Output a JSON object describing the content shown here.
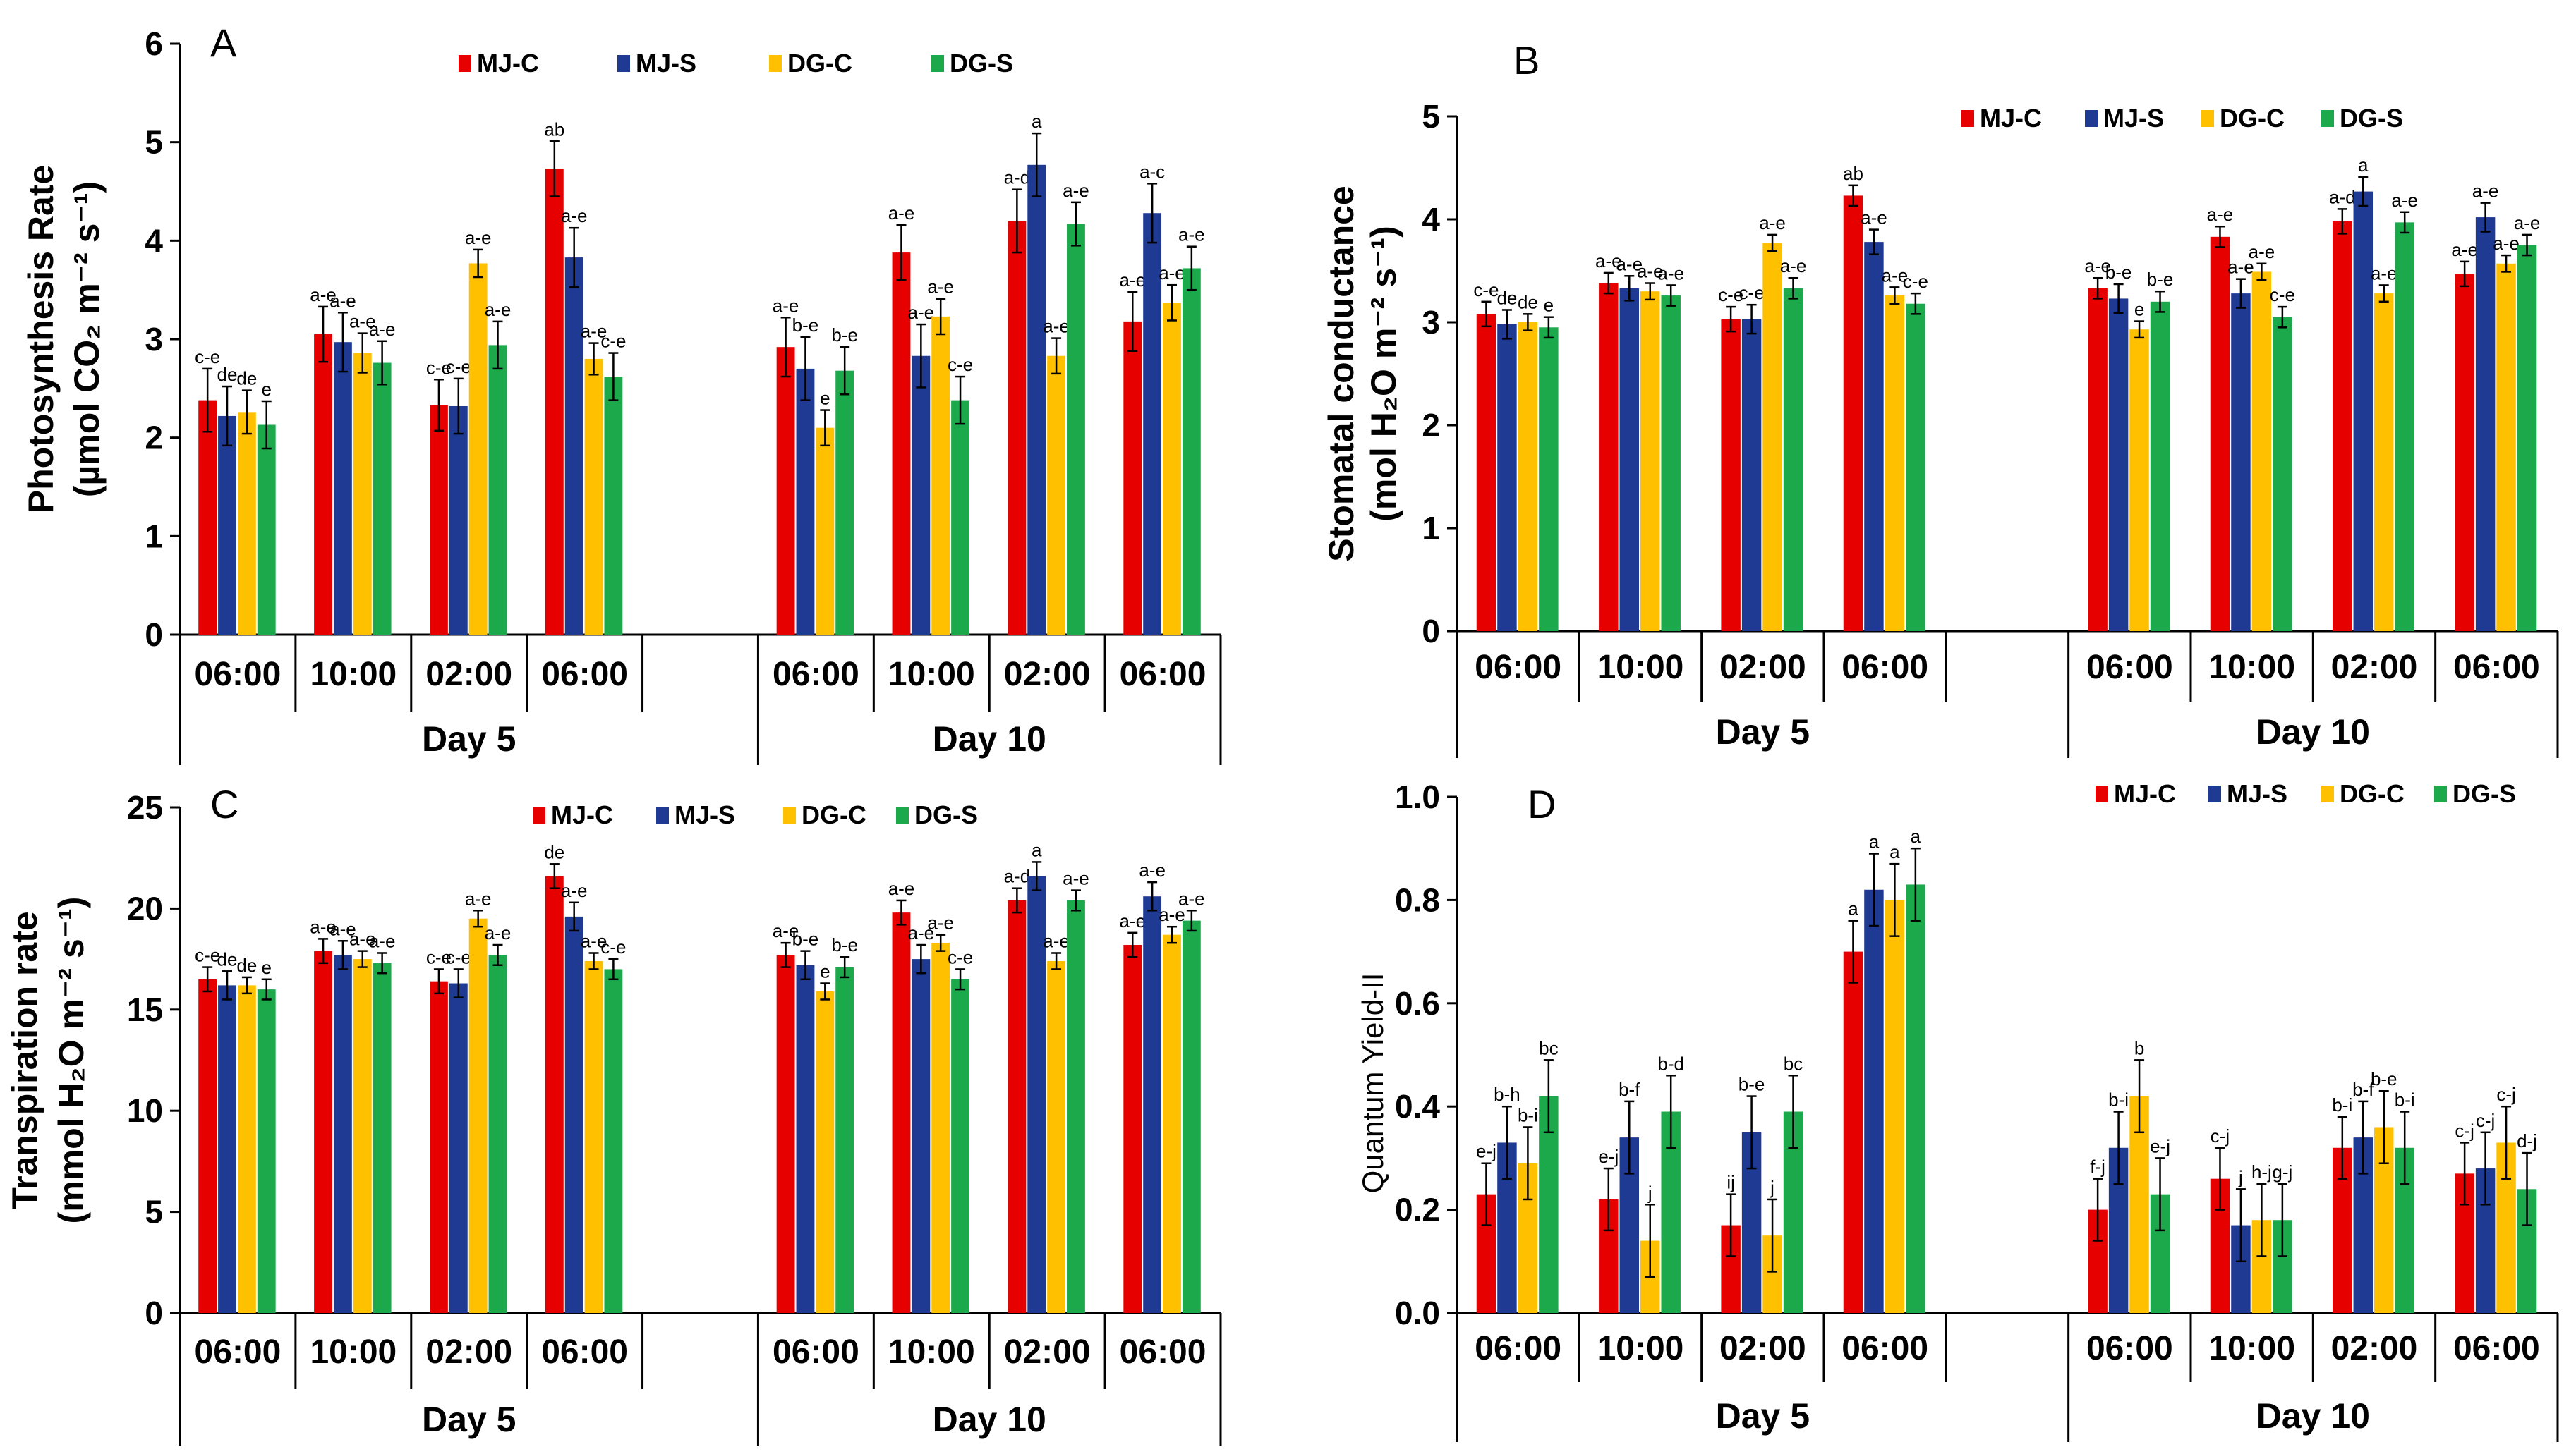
{
  "chart_data": [
    {
      "panel": "A",
      "type": "bar",
      "ylabel_line1": "Photosynthesis Rate",
      "ylabel_line2": "(µmol CO₂ m⁻² s⁻¹)",
      "ylim": [
        0,
        6
      ],
      "yticks": [
        "0",
        "1",
        "2",
        "3",
        "4",
        "5",
        "6"
      ],
      "categories": [
        "06:00",
        "10:00",
        "02:00",
        "06:00",
        "06:00",
        "10:00",
        "02:00",
        "06:00"
      ],
      "groups": [
        {
          "label": "Day 5",
          "count": 4
        },
        {
          "label": "Day 10",
          "count": 4
        }
      ],
      "series": [
        {
          "name": "MJ-C",
          "color": "#E60000",
          "values": [
            2.38,
            3.05,
            2.33,
            4.73,
            2.92,
            3.88,
            4.2,
            3.18
          ],
          "errors": [
            0.32,
            0.28,
            0.26,
            0.28,
            0.3,
            0.28,
            0.32,
            0.3
          ],
          "labels": [
            "c-e",
            "a-e",
            "c-e",
            "ab",
            "a-e",
            "a-e",
            "a-d",
            "a-e"
          ]
        },
        {
          "name": "MJ-S",
          "color": "#1F3A93",
          "values": [
            2.22,
            2.97,
            2.32,
            3.83,
            2.7,
            2.83,
            4.77,
            4.28
          ],
          "errors": [
            0.3,
            0.3,
            0.28,
            0.3,
            0.32,
            0.32,
            0.32,
            0.3
          ],
          "labels": [
            "de",
            "a-e",
            "c-e",
            "a-e",
            "b-e",
            "a-e",
            "a",
            "a-c"
          ]
        },
        {
          "name": "DG-C",
          "color": "#FFC000",
          "values": [
            2.26,
            2.86,
            3.77,
            2.8,
            2.1,
            3.23,
            2.83,
            3.37
          ],
          "errors": [
            0.22,
            0.2,
            0.14,
            0.16,
            0.18,
            0.18,
            0.18,
            0.18
          ],
          "labels": [
            "de",
            "a-e",
            "a-e",
            "a-e",
            "e",
            "a-e",
            "a-e",
            "a-e"
          ]
        },
        {
          "name": "DG-S",
          "color": "#1BA94C",
          "values": [
            2.13,
            2.76,
            2.94,
            2.62,
            2.68,
            2.38,
            4.17,
            3.72
          ],
          "errors": [
            0.24,
            0.22,
            0.24,
            0.24,
            0.24,
            0.24,
            0.22,
            0.22
          ],
          "labels": [
            "e",
            "a-e",
            "a-e",
            "c-e",
            "b-e",
            "c-e",
            "a-e",
            "a-e"
          ]
        }
      ]
    },
    {
      "panel": "B",
      "type": "bar",
      "ylabel_line1": "Stomatal conductance",
      "ylabel_line2": "(mol H₂O m⁻² s⁻¹)",
      "ylim": [
        0,
        5
      ],
      "yticks": [
        "0",
        "1",
        "2",
        "3",
        "4",
        "5"
      ],
      "categories": [
        "06:00",
        "10:00",
        "02:00",
        "06:00",
        "06:00",
        "10:00",
        "02:00",
        "06:00"
      ],
      "groups": [
        {
          "label": "Day 5",
          "count": 4
        },
        {
          "label": "Day 10",
          "count": 4
        }
      ],
      "series": [
        {
          "name": "MJ-C",
          "color": "#E60000",
          "values": [
            3.08,
            3.38,
            3.03,
            4.23,
            3.33,
            3.83,
            3.98,
            3.47
          ],
          "errors": [
            0.12,
            0.1,
            0.12,
            0.1,
            0.1,
            0.1,
            0.12,
            0.12
          ],
          "labels": [
            "c-e",
            "a-e",
            "c-e",
            "ab",
            "a-e",
            "a-e",
            "a-d",
            "a-e"
          ]
        },
        {
          "name": "MJ-S",
          "color": "#1F3A93",
          "values": [
            2.98,
            3.33,
            3.03,
            3.78,
            3.23,
            3.28,
            4.27,
            4.02
          ],
          "errors": [
            0.14,
            0.12,
            0.14,
            0.12,
            0.14,
            0.14,
            0.14,
            0.14
          ],
          "labels": [
            "de",
            "a-e",
            "c-e",
            "a-e",
            "b-e",
            "a-e",
            "a",
            "a-e"
          ]
        },
        {
          "name": "DG-C",
          "color": "#FFC000",
          "values": [
            3.0,
            3.3,
            3.77,
            3.26,
            2.93,
            3.49,
            3.28,
            3.57
          ],
          "errors": [
            0.08,
            0.08,
            0.08,
            0.08,
            0.08,
            0.08,
            0.08,
            0.08
          ],
          "labels": [
            "de",
            "a-e",
            "a-e",
            "a-e",
            "e",
            "a-e",
            "a-e",
            "a-e"
          ]
        },
        {
          "name": "DG-S",
          "color": "#1BA94C",
          "values": [
            2.95,
            3.26,
            3.33,
            3.18,
            3.2,
            3.05,
            3.97,
            3.75
          ],
          "errors": [
            0.1,
            0.1,
            0.1,
            0.1,
            0.1,
            0.1,
            0.1,
            0.1
          ],
          "labels": [
            "e",
            "a-e",
            "a-e",
            "c-e",
            "b-e",
            "c-e",
            "a-e",
            "a-e"
          ]
        }
      ]
    },
    {
      "panel": "C",
      "type": "bar",
      "ylabel_line1": "Transpiration rate",
      "ylabel_line2": "(mmol H₂O m⁻² s⁻¹)",
      "ylim": [
        0,
        25
      ],
      "yticks": [
        "0",
        "5",
        "10",
        "15",
        "20",
        "25"
      ],
      "categories": [
        "06:00",
        "10:00",
        "02:00",
        "06:00",
        "06:00",
        "10:00",
        "02:00",
        "06:00"
      ],
      "groups": [
        {
          "label": "Day 5",
          "count": 4
        },
        {
          "label": "Day 10",
          "count": 4
        }
      ],
      "series": [
        {
          "name": "MJ-C",
          "color": "#E60000",
          "values": [
            16.5,
            17.9,
            16.4,
            21.6,
            17.7,
            19.8,
            20.4,
            18.2
          ],
          "errors": [
            0.6,
            0.6,
            0.6,
            0.6,
            0.6,
            0.6,
            0.6,
            0.6
          ],
          "labels": [
            "c-e",
            "a-e",
            "c-e",
            "de",
            "a-e",
            "a-e",
            "a-d",
            "a-e"
          ]
        },
        {
          "name": "MJ-S",
          "color": "#1F3A93",
          "values": [
            16.2,
            17.7,
            16.3,
            19.6,
            17.2,
            17.5,
            21.6,
            20.6
          ],
          "errors": [
            0.7,
            0.7,
            0.7,
            0.7,
            0.7,
            0.7,
            0.7,
            0.7
          ],
          "labels": [
            "de",
            "a-e",
            "c-e",
            "a-e",
            "b-e",
            "a-e",
            "a",
            "a-e"
          ]
        },
        {
          "name": "DG-C",
          "color": "#FFC000",
          "values": [
            16.2,
            17.5,
            19.5,
            17.4,
            15.9,
            18.3,
            17.4,
            18.7
          ],
          "errors": [
            0.4,
            0.4,
            0.4,
            0.4,
            0.4,
            0.4,
            0.4,
            0.4
          ],
          "labels": [
            "de",
            "a-e",
            "a-e",
            "a-e",
            "e",
            "a-e",
            "a-e",
            "a-e"
          ]
        },
        {
          "name": "DG-S",
          "color": "#1BA94C",
          "values": [
            16.0,
            17.3,
            17.7,
            17.0,
            17.1,
            16.5,
            20.4,
            19.4
          ],
          "errors": [
            0.5,
            0.5,
            0.5,
            0.5,
            0.5,
            0.5,
            0.5,
            0.5
          ],
          "labels": [
            "e",
            "a-e",
            "a-e",
            "c-e",
            "b-e",
            "c-e",
            "a-e",
            "a-e"
          ]
        }
      ]
    },
    {
      "panel": "D",
      "type": "bar",
      "ylabel_line1": "Quantum Yield-II",
      "ylabel_line2": "",
      "ylim": [
        0,
        1.0
      ],
      "yticks": [
        "0.0",
        "0.2",
        "0.4",
        "0.6",
        "0.8",
        "1.0"
      ],
      "categories": [
        "06:00",
        "10:00",
        "02:00",
        "06:00",
        "06:00",
        "10:00",
        "02:00",
        "06:00"
      ],
      "groups": [
        {
          "label": "Day 5",
          "count": 4
        },
        {
          "label": "Day 10",
          "count": 4
        }
      ],
      "series": [
        {
          "name": "MJ-C",
          "color": "#E60000",
          "values": [
            0.23,
            0.22,
            0.17,
            0.7,
            0.2,
            0.26,
            0.32,
            0.27
          ],
          "errors": [
            0.06,
            0.06,
            0.06,
            0.06,
            0.06,
            0.06,
            0.06,
            0.06
          ],
          "labels": [
            "e-j",
            "e-j",
            "ij",
            "a",
            "f-j",
            "c-j",
            "b-i",
            "c-j"
          ]
        },
        {
          "name": "MJ-S",
          "color": "#1F3A93",
          "values": [
            0.33,
            0.34,
            0.35,
            0.82,
            0.32,
            0.17,
            0.34,
            0.28
          ],
          "errors": [
            0.07,
            0.07,
            0.07,
            0.07,
            0.07,
            0.07,
            0.07,
            0.07
          ],
          "labels": [
            "b-h",
            "b-f",
            "b-e",
            "a",
            "b-i",
            "j",
            "b-f",
            "c-j"
          ]
        },
        {
          "name": "DG-C",
          "color": "#FFC000",
          "values": [
            0.29,
            0.14,
            0.15,
            0.8,
            0.42,
            0.18,
            0.36,
            0.33
          ],
          "errors": [
            0.07,
            0.07,
            0.07,
            0.07,
            0.07,
            0.07,
            0.07,
            0.07
          ],
          "labels": [
            "b-i",
            "j",
            "j",
            "a",
            "b",
            "h-j",
            "b-e",
            "c-j"
          ]
        },
        {
          "name": "DG-S",
          "color": "#1BA94C",
          "values": [
            0.42,
            0.39,
            0.39,
            0.83,
            0.23,
            0.18,
            0.32,
            0.24
          ],
          "errors": [
            0.07,
            0.07,
            0.07,
            0.07,
            0.07,
            0.07,
            0.07,
            0.07
          ],
          "labels": [
            "bc",
            "b-d",
            "bc",
            "a",
            "e-j",
            "g-j",
            "b-i",
            "d-j"
          ]
        }
      ]
    }
  ]
}
